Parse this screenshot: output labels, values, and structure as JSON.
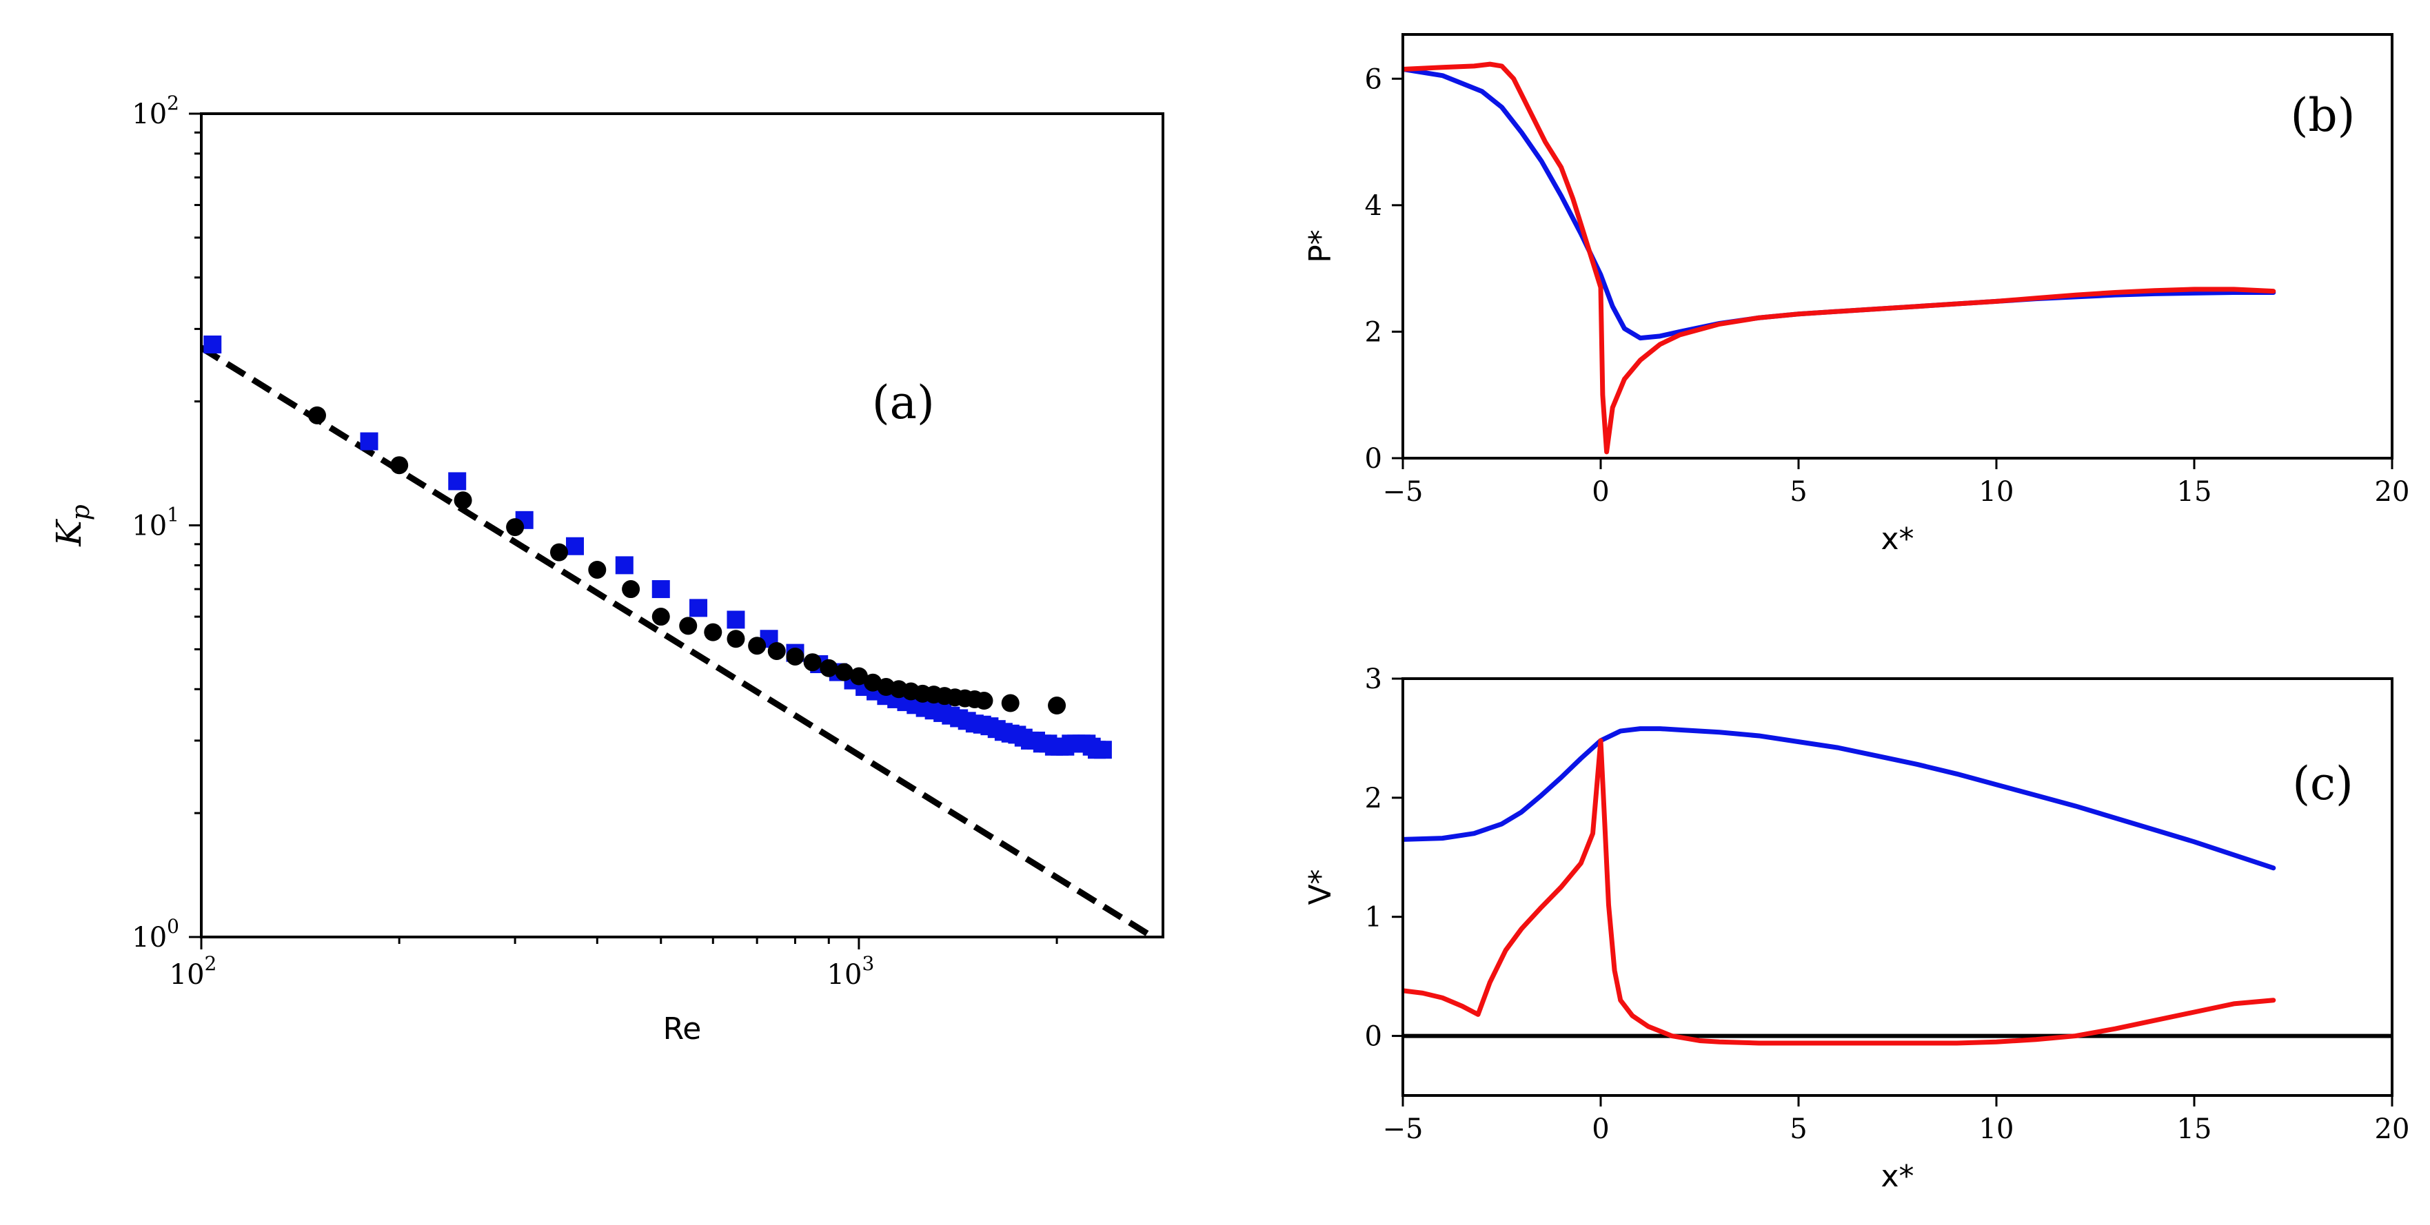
{
  "chart_data": [
    {
      "id": "a",
      "type": "scatter",
      "panel_label": "(a)",
      "xlabel": "Re",
      "ylabel": "K",
      "ylabel_sub": "p",
      "xscale": "log",
      "yscale": "log",
      "xlim": [
        100,
        2900
      ],
      "ylim": [
        1,
        100
      ],
      "x_ticks": [
        {
          "value": 100,
          "base": "10",
          "exp": "2"
        },
        {
          "value": 1000,
          "base": "10",
          "exp": "3"
        }
      ],
      "y_ticks": [
        {
          "value": 1,
          "base": "10",
          "exp": "0"
        },
        {
          "value": 10,
          "base": "10",
          "exp": "1"
        },
        {
          "value": 100,
          "base": "10",
          "exp": "2"
        }
      ],
      "series": [
        {
          "name": "dashed fit",
          "style": "dashed-line",
          "color": "#000000",
          "x": [
            100,
            2800
          ],
          "y": [
            27,
            1.0
          ]
        },
        {
          "name": "blue squares",
          "style": "square",
          "color": "#0a14e6",
          "x": [
            104,
            180,
            245,
            310,
            370,
            440,
            500,
            570,
            650,
            730,
            800,
            870,
            930,
            980,
            1020,
            1060,
            1100,
            1140,
            1180,
            1220,
            1260,
            1300,
            1340,
            1380,
            1420,
            1460,
            1500,
            1540,
            1580,
            1620,
            1660,
            1700,
            1740,
            1780,
            1820,
            1860,
            1900,
            1940,
            1980,
            2020,
            2060,
            2100,
            2140,
            2180,
            2220,
            2260,
            2300,
            2350
          ],
          "y": [
            27.5,
            16,
            12.8,
            10.3,
            8.9,
            8.0,
            7.0,
            6.3,
            5.9,
            5.3,
            4.9,
            4.6,
            4.4,
            4.2,
            4.05,
            3.95,
            3.85,
            3.78,
            3.72,
            3.66,
            3.6,
            3.55,
            3.5,
            3.45,
            3.4,
            3.35,
            3.3,
            3.28,
            3.25,
            3.2,
            3.15,
            3.12,
            3.1,
            3.05,
            3.0,
            3.0,
            2.95,
            2.95,
            2.9,
            2.9,
            2.9,
            2.95,
            2.95,
            2.95,
            2.95,
            2.9,
            2.85,
            2.85
          ]
        },
        {
          "name": "black circles",
          "style": "circle",
          "color": "#000000",
          "x": [
            150,
            200,
            250,
            300,
            350,
            400,
            450,
            500,
            550,
            600,
            650,
            700,
            750,
            800,
            850,
            900,
            950,
            1000,
            1050,
            1100,
            1150,
            1200,
            1250,
            1300,
            1350,
            1400,
            1450,
            1500,
            1550,
            1700,
            2000
          ],
          "y": [
            18.5,
            14,
            11.5,
            9.9,
            8.6,
            7.8,
            7.0,
            6.0,
            5.7,
            5.5,
            5.3,
            5.1,
            4.95,
            4.8,
            4.65,
            4.5,
            4.4,
            4.3,
            4.15,
            4.05,
            4.0,
            3.95,
            3.9,
            3.88,
            3.85,
            3.82,
            3.8,
            3.78,
            3.75,
            3.7,
            3.65
          ]
        }
      ]
    },
    {
      "id": "b",
      "type": "line",
      "panel_label": "(b)",
      "xlabel": "x*",
      "ylabel": "P*",
      "xlim": [
        -5,
        20
      ],
      "ylim": [
        0,
        6.7
      ],
      "x_ticks": [
        -5,
        0,
        5,
        10,
        15,
        20
      ],
      "x_tick_labels": [
        "−5",
        "0",
        "5",
        "10",
        "15",
        "20"
      ],
      "y_ticks": [
        0,
        2,
        4,
        6
      ],
      "y_tick_labels": [
        "0",
        "2",
        "4",
        "6"
      ],
      "series": [
        {
          "name": "blue",
          "color": "#0a14e6",
          "x": [
            -5,
            -4,
            -3,
            -2.5,
            -2,
            -1.5,
            -1,
            -0.5,
            0,
            0.3,
            0.6,
            1,
            1.5,
            2,
            3,
            4,
            5,
            6,
            7,
            8,
            9,
            10,
            11,
            12,
            13,
            14,
            15,
            16,
            17
          ],
          "y": [
            6.15,
            6.05,
            5.8,
            5.55,
            5.15,
            4.7,
            4.15,
            3.55,
            2.9,
            2.4,
            2.05,
            1.9,
            1.93,
            2.0,
            2.13,
            2.22,
            2.28,
            2.32,
            2.36,
            2.4,
            2.44,
            2.48,
            2.52,
            2.55,
            2.58,
            2.6,
            2.61,
            2.62,
            2.62
          ]
        },
        {
          "name": "red",
          "color": "#f21010",
          "x": [
            -5,
            -4,
            -3.2,
            -2.8,
            -2.5,
            -2.2,
            -1.8,
            -1.4,
            -1,
            -0.7,
            -0.4,
            -0.2,
            0,
            0.05,
            0.15,
            0.3,
            0.6,
            1,
            1.5,
            2,
            3,
            4,
            5,
            6,
            7,
            8,
            9,
            10,
            11,
            12,
            13,
            14,
            15,
            16,
            17
          ],
          "y": [
            6.15,
            6.18,
            6.2,
            6.23,
            6.2,
            6.0,
            5.5,
            5.0,
            4.6,
            4.1,
            3.5,
            3.1,
            2.7,
            1.0,
            0.1,
            0.8,
            1.25,
            1.55,
            1.8,
            1.95,
            2.12,
            2.22,
            2.28,
            2.32,
            2.36,
            2.4,
            2.44,
            2.48,
            2.53,
            2.58,
            2.62,
            2.65,
            2.67,
            2.67,
            2.64
          ]
        }
      ]
    },
    {
      "id": "c",
      "type": "line",
      "panel_label": "(c)",
      "xlabel": "x*",
      "ylabel": "V*",
      "xlim": [
        -5,
        20
      ],
      "ylim": [
        -0.5,
        3
      ],
      "x_ticks": [
        -5,
        0,
        5,
        10,
        15,
        20
      ],
      "x_tick_labels": [
        "−5",
        "0",
        "5",
        "10",
        "15",
        "20"
      ],
      "y_ticks": [
        0,
        1,
        2,
        3
      ],
      "y_tick_labels": [
        "0",
        "1",
        "2",
        "3"
      ],
      "hline": {
        "y": 0,
        "color": "#000000"
      },
      "series": [
        {
          "name": "blue",
          "color": "#0a14e6",
          "x": [
            -5,
            -4,
            -3.2,
            -2.5,
            -2,
            -1.5,
            -1,
            -0.5,
            0,
            0.5,
            1,
            1.5,
            2,
            3,
            4,
            5,
            6,
            7,
            8,
            9,
            10,
            11,
            12,
            13,
            14,
            15,
            16,
            17
          ],
          "y": [
            1.65,
            1.66,
            1.7,
            1.78,
            1.88,
            2.02,
            2.17,
            2.33,
            2.48,
            2.56,
            2.58,
            2.58,
            2.57,
            2.55,
            2.52,
            2.47,
            2.42,
            2.35,
            2.28,
            2.2,
            2.11,
            2.02,
            1.93,
            1.83,
            1.73,
            1.63,
            1.52,
            1.41
          ]
        },
        {
          "name": "red",
          "color": "#f21010",
          "x": [
            -5,
            -4.5,
            -4,
            -3.5,
            -3.1,
            -2.8,
            -2.4,
            -2,
            -1.5,
            -1,
            -0.5,
            -0.2,
            0,
            0.1,
            0.2,
            0.35,
            0.5,
            0.8,
            1.2,
            1.8,
            2.5,
            3,
            4,
            5,
            6,
            7,
            8,
            9,
            10,
            11,
            12,
            13,
            14,
            15,
            16,
            17
          ],
          "y": [
            0.38,
            0.36,
            0.32,
            0.25,
            0.18,
            0.45,
            0.72,
            0.9,
            1.08,
            1.25,
            1.45,
            1.7,
            2.48,
            1.8,
            1.1,
            0.55,
            0.3,
            0.17,
            0.08,
            0.0,
            -0.04,
            -0.05,
            -0.06,
            -0.06,
            -0.06,
            -0.06,
            -0.06,
            -0.06,
            -0.05,
            -0.03,
            0.0,
            0.06,
            0.13,
            0.2,
            0.27,
            0.3
          ]
        }
      ]
    }
  ]
}
